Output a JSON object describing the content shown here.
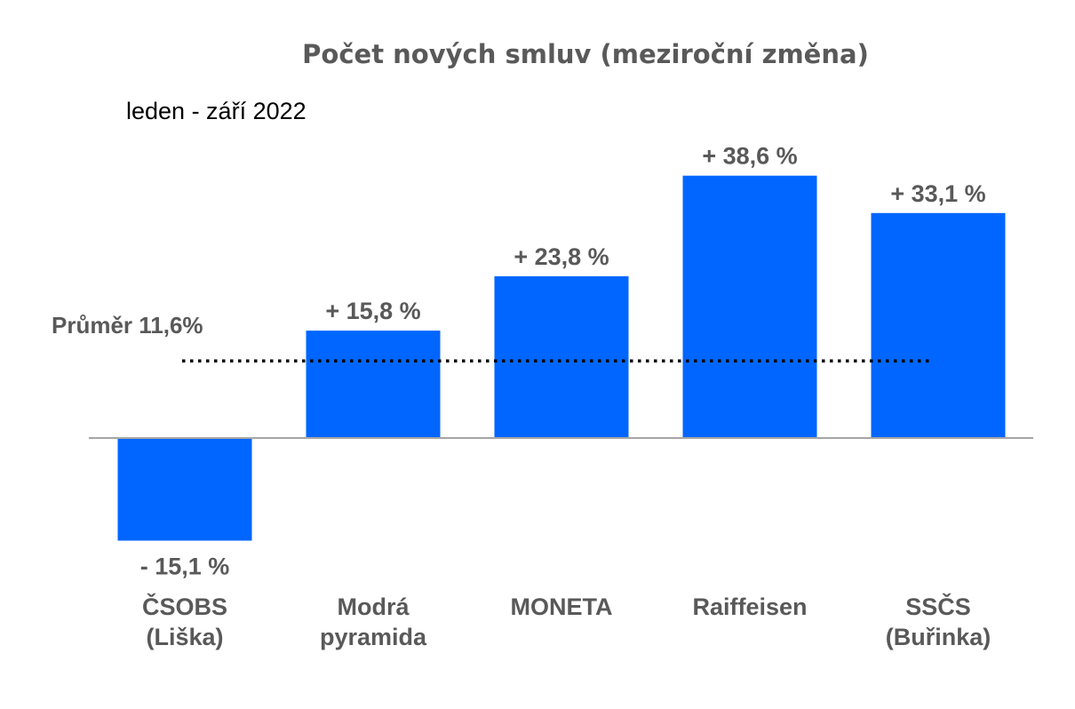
{
  "chart_data": {
    "type": "bar",
    "title": "Počet nových smluv (meziroční změna)",
    "subtitle": "leden - září 2022",
    "categories": [
      [
        "ČSOBS",
        "(Liška)"
      ],
      [
        "Modrá",
        "pyramida"
      ],
      [
        "MONETA"
      ],
      [
        "Raiffeisen"
      ],
      [
        "SSČS",
        "(Buřinka)"
      ]
    ],
    "values": [
      -15.1,
      15.8,
      23.8,
      38.6,
      33.1
    ],
    "value_labels": [
      "- 15,1 %",
      "+ 15,8 %",
      "+ 23,8 %",
      "+ 38,6 %",
      "+ 33,1 %"
    ],
    "ylim": [
      -20,
      45
    ],
    "grid": false,
    "legend": "none",
    "average": {
      "value": 11.6,
      "label": "Průměr 11,6%"
    },
    "colors": {
      "bar": "#0066ff",
      "axis": "#a6a6a6",
      "text": "#595959",
      "average_line": "#000000"
    }
  }
}
